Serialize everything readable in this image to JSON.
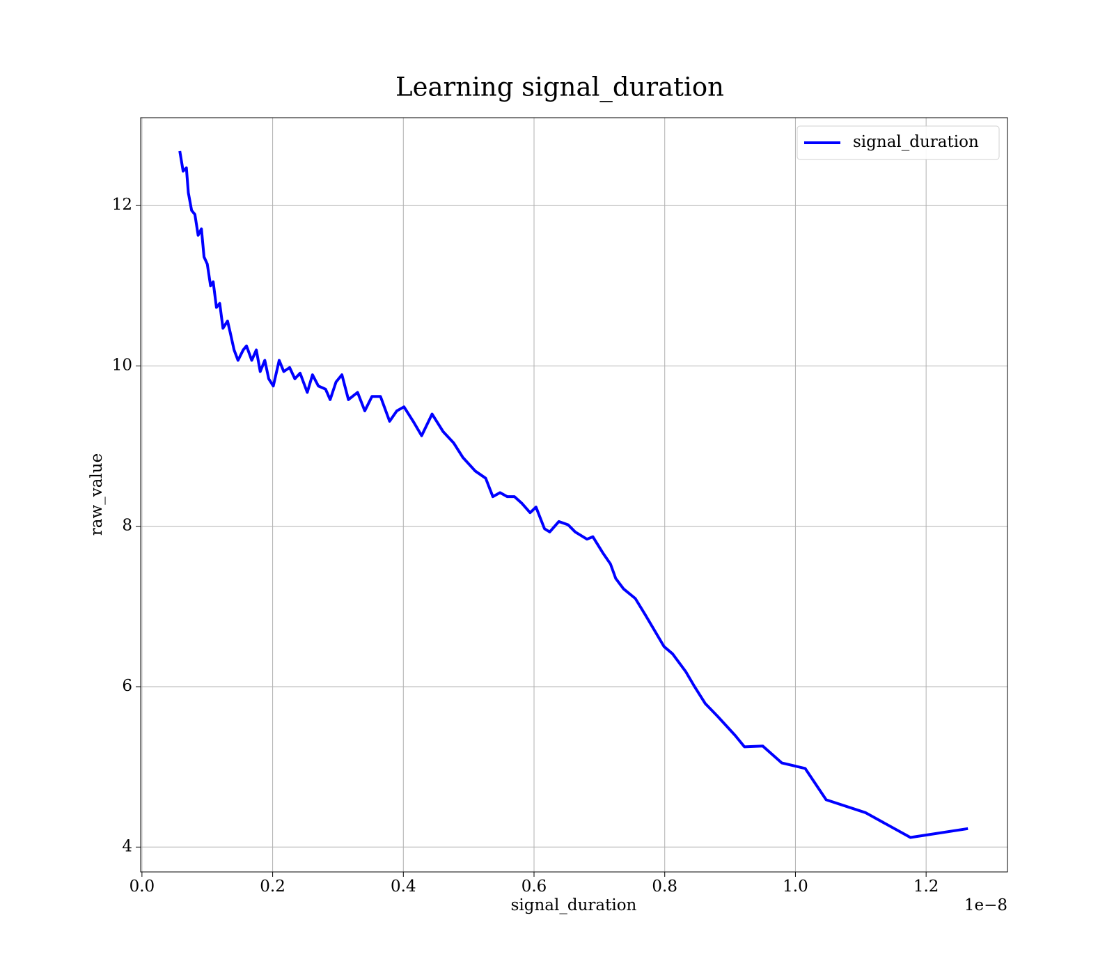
{
  "chart_data": {
    "type": "line",
    "title": "Learning signal_duration",
    "x_label": "signal_duration",
    "y_label": "raw_value",
    "x_offset_label": "1e−8",
    "x": [
      0.0579,
      0.063,
      0.068,
      0.071,
      0.076,
      0.081,
      0.086,
      0.091,
      0.095,
      0.1,
      0.105,
      0.109,
      0.114,
      0.119,
      0.124,
      0.131,
      0.135,
      0.141,
      0.147,
      0.155,
      0.16,
      0.168,
      0.175,
      0.181,
      0.188,
      0.194,
      0.201,
      0.21,
      0.217,
      0.226,
      0.234,
      0.242,
      0.253,
      0.261,
      0.27,
      0.281,
      0.288,
      0.297,
      0.306,
      0.316,
      0.33,
      0.341,
      0.352,
      0.365,
      0.379,
      0.39,
      0.401,
      0.415,
      0.428,
      0.444,
      0.461,
      0.477,
      0.491,
      0.51,
      0.526,
      0.537,
      0.548,
      0.559,
      0.57,
      0.581,
      0.594,
      0.603,
      0.616,
      0.624,
      0.638,
      0.652,
      0.663,
      0.681,
      0.69,
      0.706,
      0.717,
      0.725,
      0.737,
      0.755,
      0.77,
      0.799,
      0.812,
      0.832,
      0.845,
      0.862,
      0.881,
      0.908,
      0.922,
      0.95,
      0.979,
      1.015,
      1.047,
      1.107,
      1.176,
      1.264
    ],
    "series": [
      {
        "name": "signal_duration",
        "color": "#0000ff",
        "values": [
          12.68,
          12.43,
          12.47,
          12.16,
          11.94,
          11.89,
          11.63,
          11.71,
          11.36,
          11.27,
          11.0,
          11.05,
          10.73,
          10.78,
          10.47,
          10.56,
          10.42,
          10.2,
          10.07,
          10.2,
          10.25,
          10.07,
          10.2,
          9.93,
          10.07,
          9.84,
          9.75,
          10.07,
          9.93,
          9.98,
          9.84,
          9.91,
          9.67,
          9.89,
          9.75,
          9.71,
          9.58,
          9.8,
          9.89,
          9.58,
          9.67,
          9.44,
          9.62,
          9.62,
          9.31,
          9.44,
          9.49,
          9.31,
          9.13,
          9.4,
          9.18,
          9.04,
          8.86,
          8.69,
          8.6,
          8.37,
          8.42,
          8.37,
          8.37,
          8.29,
          8.17,
          8.24,
          7.97,
          7.93,
          8.06,
          8.02,
          7.93,
          7.84,
          7.87,
          7.66,
          7.53,
          7.35,
          7.22,
          7.1,
          6.9,
          6.5,
          6.41,
          6.19,
          6.01,
          5.79,
          5.63,
          5.39,
          5.25,
          5.26,
          5.05,
          4.98,
          4.59,
          4.43,
          4.12,
          4.23
        ]
      }
    ],
    "xlim": [
      -0.002,
      1.3245
    ],
    "ylim": [
      3.69,
      13.096
    ],
    "xticks": [
      {
        "value": 0,
        "label": "0.0"
      },
      0.2,
      0.4,
      0.6,
      0.8,
      {
        "value": 1,
        "label": "1.0"
      },
      1.2
    ],
    "yticks": [
      4,
      6,
      8,
      10,
      12
    ],
    "grid": true,
    "legend": "upper right"
  }
}
